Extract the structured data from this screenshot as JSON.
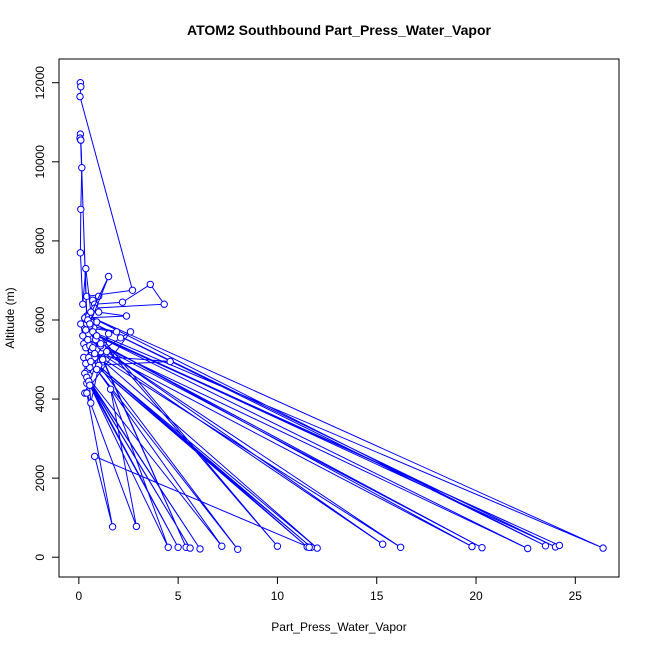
{
  "chart_data": {
    "type": "line",
    "title": "ATOM2 Southbound Part_Press_Water_Vapor",
    "xlabel": "Part_Press_Water_Vapor",
    "ylabel": "Altitude (m)",
    "xlim": [
      -1.0,
      27.2
    ],
    "ylim": [
      -500,
      12600
    ],
    "xticks": [
      0,
      5,
      10,
      15,
      20,
      25
    ],
    "yticks": [
      0,
      2000,
      4000,
      6000,
      8000,
      10000,
      12000
    ],
    "line_color": "#0000ff",
    "marker": "open-circle",
    "grid": false,
    "series": [
      {
        "x": [
          0.08,
          0.1,
          0.06,
          2.7,
          0.4,
          0.7,
          1.0,
          0.8,
          2.2,
          3.6,
          4.3,
          0.8,
          1.0,
          2.4,
          0.3,
          0.1,
          0.2,
          0.25,
          0.35,
          0.6,
          4.6,
          0.7,
          0.4,
          0.5,
          1.5,
          1.3,
          0.85,
          1.1,
          2.1,
          2.6,
          0.3,
          1.2,
          0.6,
          0.45,
          0.55,
          0.4,
          0.25,
          0.35,
          0.55,
          0.8,
          0.9,
          1.1,
          1.2,
          0.75,
          0.9,
          0.6,
          0.5,
          0.45,
          1.9,
          0.55,
          0.4,
          0.08,
          0.06,
          0.1,
          0.4,
          5.4,
          0.3,
          10.0,
          0.7,
          26.4,
          0.5,
          23.5,
          0.6,
          24.0,
          0.35,
          24.2,
          0.9,
          22.6,
          0.45,
          20.3,
          1.1,
          19.8,
          0.7,
          15.3,
          1.4,
          16.2,
          0.8,
          12.0,
          0.5,
          11.7,
          0.6,
          11.5,
          1.0,
          8.0,
          0.9,
          7.2,
          0.3,
          6.1,
          0.4,
          5.6,
          0.5,
          5.0,
          0.55,
          4.5,
          1.6,
          2.9,
          0.4,
          1.7,
          0.8,
          11.6
        ],
        "y": [
          12000,
          11900,
          11650,
          6750,
          6600,
          6500,
          6600,
          6400,
          6450,
          6900,
          6400,
          6300,
          6200,
          6100,
          6050,
          5900,
          5600,
          5400,
          5300,
          5100,
          4950,
          4850,
          4700,
          4600,
          5650,
          5250,
          5500,
          5200,
          5550,
          5700,
          4150,
          5300,
          3900,
          5000,
          4800,
          4400,
          5050,
          4900,
          5350,
          5050,
          5250,
          5350,
          5000,
          5800,
          5950,
          6000,
          5650,
          5800,
          5700,
          5850,
          6100,
          10700,
          10600,
          10550,
          5900,
          250,
          6050,
          280,
          5700,
          230,
          6100,
          290,
          5950,
          260,
          5750,
          300,
          5600,
          220,
          5500,
          240,
          5400,
          270,
          5300,
          330,
          5200,
          250,
          5150,
          230,
          5050,
          250,
          4950,
          260,
          4850,
          200,
          4750,
          280,
          4650,
          210,
          4550,
          230,
          4450,
          250,
          4350,
          250,
          4250,
          780,
          4150,
          770,
          2550,
          250
        ]
      },
      {
        "x": [
          0.1,
          0.15,
          0.1,
          0.08,
          0.2,
          0.35,
          0.6,
          0.45,
          1.5,
          0.55
        ],
        "y": [
          10550,
          9850,
          8800,
          7700,
          6400,
          7300,
          6200,
          6000,
          7100,
          5900
        ]
      }
    ]
  }
}
